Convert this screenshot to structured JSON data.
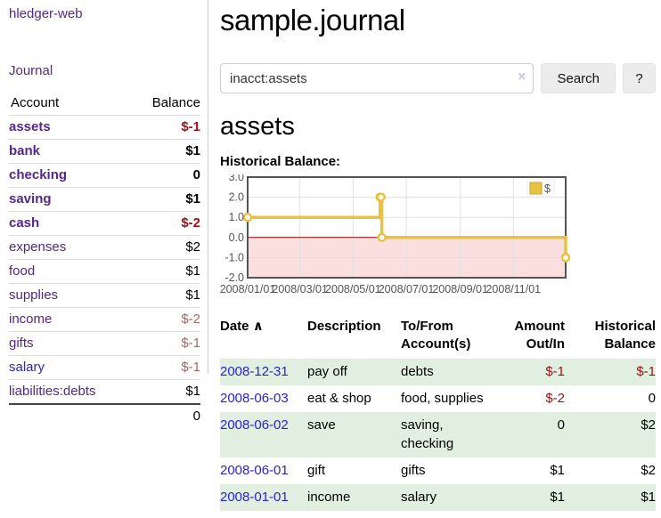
{
  "app": {
    "title": "hledger-web"
  },
  "colors": {
    "link_purple": "#54278e",
    "link_blue": "#2a23cf",
    "negative_strong": "#a11117",
    "negative_muted": "#ae6262",
    "row_highlight_green": "#e0efdf",
    "chart_series_gold": "#e8c240",
    "chart_negative_region": "#fbdfdf",
    "chart_zero_line": "#8b0000",
    "chart_grid": "#e0e0e0",
    "chart_border": "#545454"
  },
  "sidebar": {
    "journal_link": "Journal",
    "table": {
      "headers": {
        "account": "Account",
        "balance": "Balance"
      },
      "rows": [
        {
          "account": "assets",
          "balance": "$-1",
          "level": 1,
          "bold": true,
          "negative": "strong"
        },
        {
          "account": "bank",
          "balance": "$1",
          "level": 2,
          "bold": true,
          "negative": "none"
        },
        {
          "account": "checking",
          "balance": "0",
          "level": 3,
          "bold": true,
          "negative": "none"
        },
        {
          "account": "saving",
          "balance": "$1",
          "level": 3,
          "bold": true,
          "negative": "none"
        },
        {
          "account": "cash",
          "balance": "$-2",
          "level": 2,
          "bold": true,
          "negative": "strong"
        },
        {
          "account": "expenses",
          "balance": "$2",
          "level": 1,
          "bold": false,
          "negative": "none"
        },
        {
          "account": "food",
          "balance": "$1",
          "level": 2,
          "bold": false,
          "negative": "none"
        },
        {
          "account": "supplies",
          "balance": "$1",
          "level": 2,
          "bold": false,
          "negative": "none"
        },
        {
          "account": "income",
          "balance": "$-2",
          "level": 1,
          "bold": false,
          "negative": "muted"
        },
        {
          "account": "gifts",
          "balance": "$-1",
          "level": 2,
          "bold": false,
          "negative": "muted"
        },
        {
          "account": "salary",
          "balance": "$-1",
          "level": 2,
          "bold": false,
          "negative": "muted",
          "link_color": "blue"
        },
        {
          "account": "liabilities:debts",
          "balance": "$1",
          "level": 1,
          "bold": false,
          "negative": "none"
        }
      ],
      "total": "0"
    }
  },
  "main": {
    "title": "sample.journal",
    "search": {
      "value": "inacct:assets",
      "clear_icon": "×",
      "button": "Search",
      "help_button": "?"
    },
    "account_heading": "assets",
    "chart_heading": "Historical Balance:",
    "register": {
      "sort_icon": "∧",
      "headers": {
        "date": "Date",
        "description": "Description",
        "accounts": "To/From Account(s)",
        "amount": "Amount Out/In",
        "balance": "Historical Balance"
      },
      "rows": [
        {
          "date": "2008-12-31",
          "description": "pay off",
          "accounts": "debts",
          "amount": "$-1",
          "balance": "$-1"
        },
        {
          "date": "2008-06-03",
          "description": "eat & shop",
          "accounts": "food, supplies",
          "amount": "$-2",
          "balance": "0"
        },
        {
          "date": "2008-06-02",
          "description": "save",
          "accounts": "saving, checking",
          "amount": "0",
          "balance": "$2"
        },
        {
          "date": "2008-06-01",
          "description": "gift",
          "accounts": "gifts",
          "amount": "$1",
          "balance": "$2"
        },
        {
          "date": "2008-01-01",
          "description": "income",
          "accounts": "salary",
          "amount": "$1",
          "balance": "$1"
        }
      ]
    }
  },
  "chart_data": {
    "type": "line",
    "style": "steps",
    "title": "Historical Balance:",
    "series": [
      {
        "name": "$",
        "color": "#e8c240",
        "points": [
          [
            "2008-01-01",
            1
          ],
          [
            "2008-06-01",
            2
          ],
          [
            "2008-06-02",
            2
          ],
          [
            "2008-06-03",
            0
          ],
          [
            "2008-12-31",
            -1
          ]
        ]
      }
    ],
    "xlim": [
      "2008-01-01",
      "2008-12-31"
    ],
    "ylim": [
      -2,
      3
    ],
    "yticks": [
      3,
      2,
      1,
      0,
      -1,
      -2
    ],
    "xticks": [
      "2008/01/01",
      "2008/03/01",
      "2008/05/01",
      "2008/07/01",
      "2008/09/01",
      "2008/11/01"
    ],
    "grid": true,
    "legend_position": "top-right",
    "negative_region_shaded": true
  }
}
